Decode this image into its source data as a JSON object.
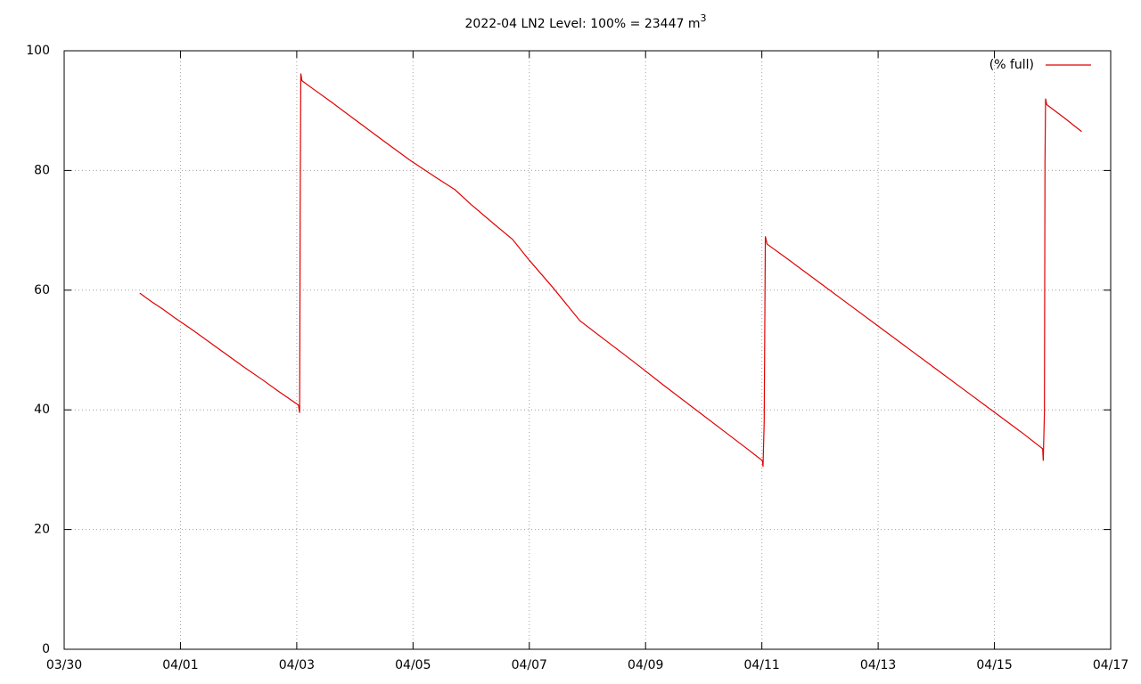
{
  "chart_data": {
    "type": "line",
    "title": "2022-04 LN2 Level: 100% = 23447 m",
    "title_superscript": "3",
    "x": [
      1.3,
      1.5,
      1.7,
      1.9,
      2.2,
      2.5,
      2.8,
      3.1,
      3.4,
      3.7,
      4.03,
      4.05,
      4.06,
      4.07,
      4.09,
      4.3,
      4.6,
      5.0,
      5.5,
      5.95,
      6.4,
      6.72,
      7.0,
      7.4,
      7.71,
      8.0,
      8.4,
      8.87,
      9.3,
      9.8,
      10.3,
      10.8,
      11.3,
      11.8,
      12.01,
      12.02,
      12.04,
      12.06,
      12.09,
      12.5,
      13.0,
      13.5,
      14.0,
      14.5,
      15.0,
      15.5,
      16.0,
      16.5,
      16.83,
      16.84,
      16.86,
      16.87,
      16.88,
      16.9,
      17.2,
      17.5
    ],
    "series": [
      {
        "name": "(% full)",
        "color": "#e00000",
        "values": [
          59.5,
          58.1,
          56.8,
          55.4,
          53.4,
          51.3,
          49.2,
          47.1,
          45.1,
          43.0,
          40.8,
          39.5,
          74.5,
          96.2,
          95.0,
          93.5,
          91.4,
          88.5,
          84.9,
          81.7,
          78.8,
          76.8,
          74.3,
          71.0,
          68.5,
          65.0,
          60.5,
          54.9,
          51.7,
          48.0,
          44.2,
          40.5,
          36.8,
          33.1,
          31.5,
          30.5,
          38.0,
          69.0,
          67.7,
          64.8,
          61.2,
          57.6,
          54.0,
          50.4,
          46.8,
          43.2,
          39.6,
          36.0,
          33.5,
          31.5,
          39.5,
          81.5,
          92.0,
          91.0,
          88.8,
          86.5
        ]
      }
    ],
    "xlim": [
      0,
      18
    ],
    "xticks": [
      {
        "value": 0,
        "label": "03/30"
      },
      {
        "value": 2,
        "label": "04/01"
      },
      {
        "value": 4,
        "label": "04/03"
      },
      {
        "value": 6,
        "label": "04/05"
      },
      {
        "value": 8,
        "label": "04/07"
      },
      {
        "value": 10,
        "label": "04/09"
      },
      {
        "value": 12,
        "label": "04/11"
      },
      {
        "value": 14,
        "label": "04/13"
      },
      {
        "value": 16,
        "label": "04/15"
      },
      {
        "value": 18,
        "label": "04/17"
      }
    ],
    "ylim": [
      0,
      100
    ],
    "yticks": [
      0,
      20,
      40,
      60,
      80,
      100
    ],
    "grid": true,
    "legend": "top-right"
  }
}
